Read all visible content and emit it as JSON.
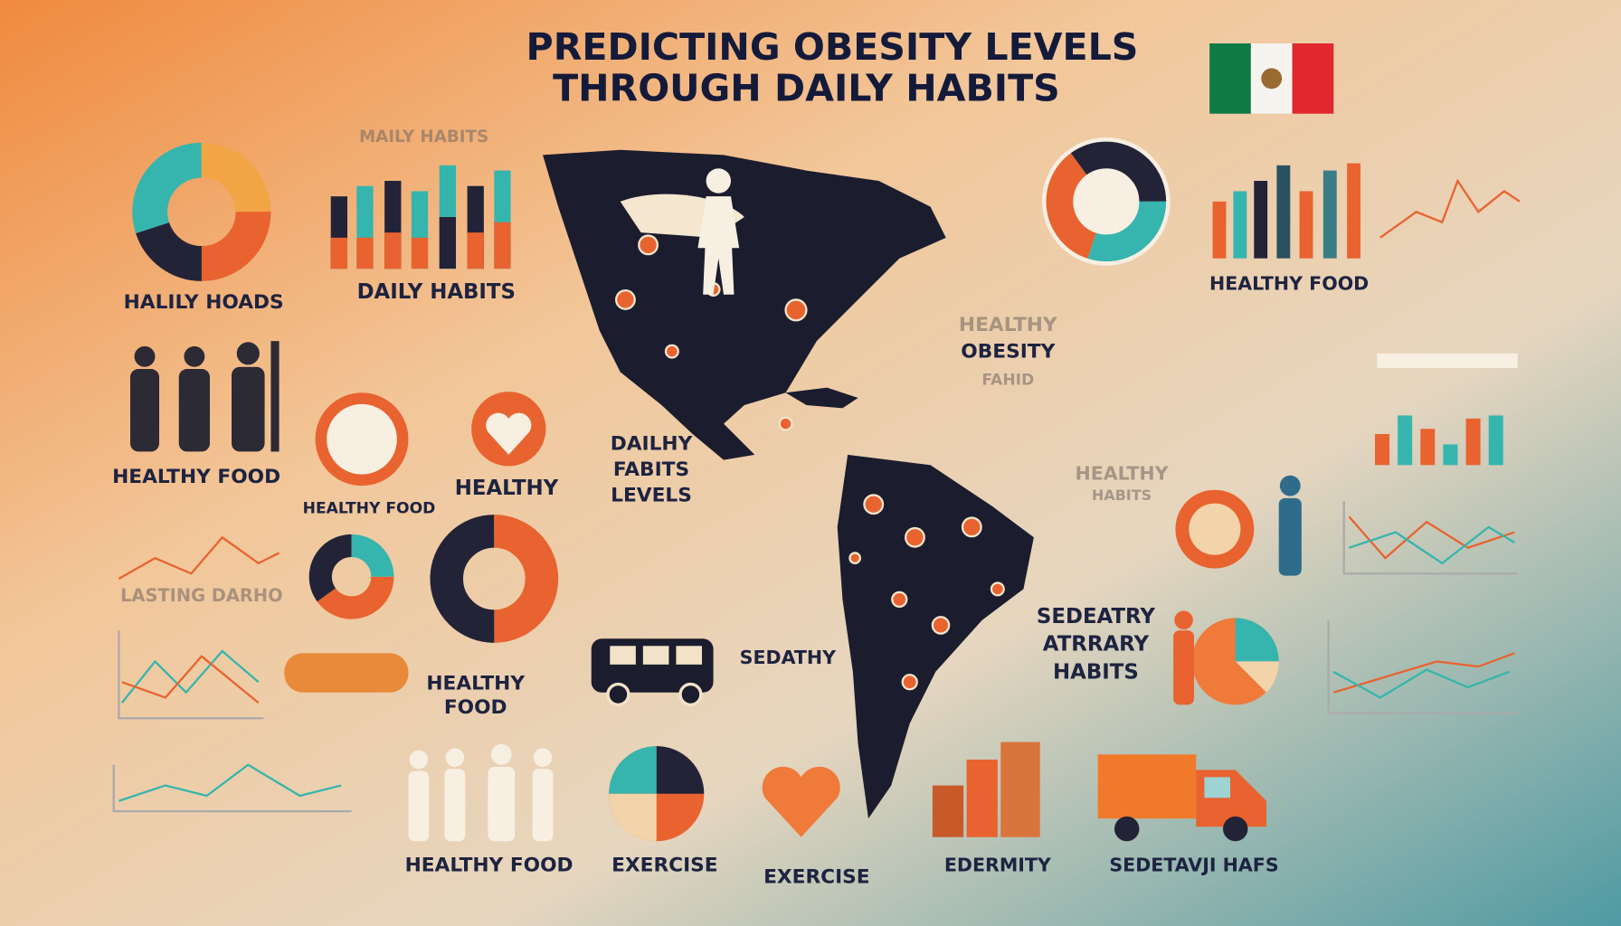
{
  "title": {
    "line1": "PREDICTING OBESITY LEVELS",
    "line2": "THROUGH   DAILY HABITS"
  },
  "labels": [
    "MAILY HABITS",
    "DAILY HABITS",
    "HALILY HOADS",
    "HEALTHY FOOD",
    "HEALTHY FOOD",
    "HEALTHY",
    "DAILHY",
    "FABITS",
    "LEVELS",
    "HEALTHY",
    "OBESITY",
    "FAHID",
    "HEALTHY FOOD",
    "HEALTHY",
    "HABITS",
    "LASTING DARHO",
    "HEALTHY",
    "FOOD",
    "SEDATHY",
    "SEDEATRY",
    "ATRRARY",
    "HABITS",
    "HEALTHY FOOD",
    "EXERCISE",
    "EXERCISE",
    "EDERMITY",
    "SEDETAVJI HAFS"
  ]
}
